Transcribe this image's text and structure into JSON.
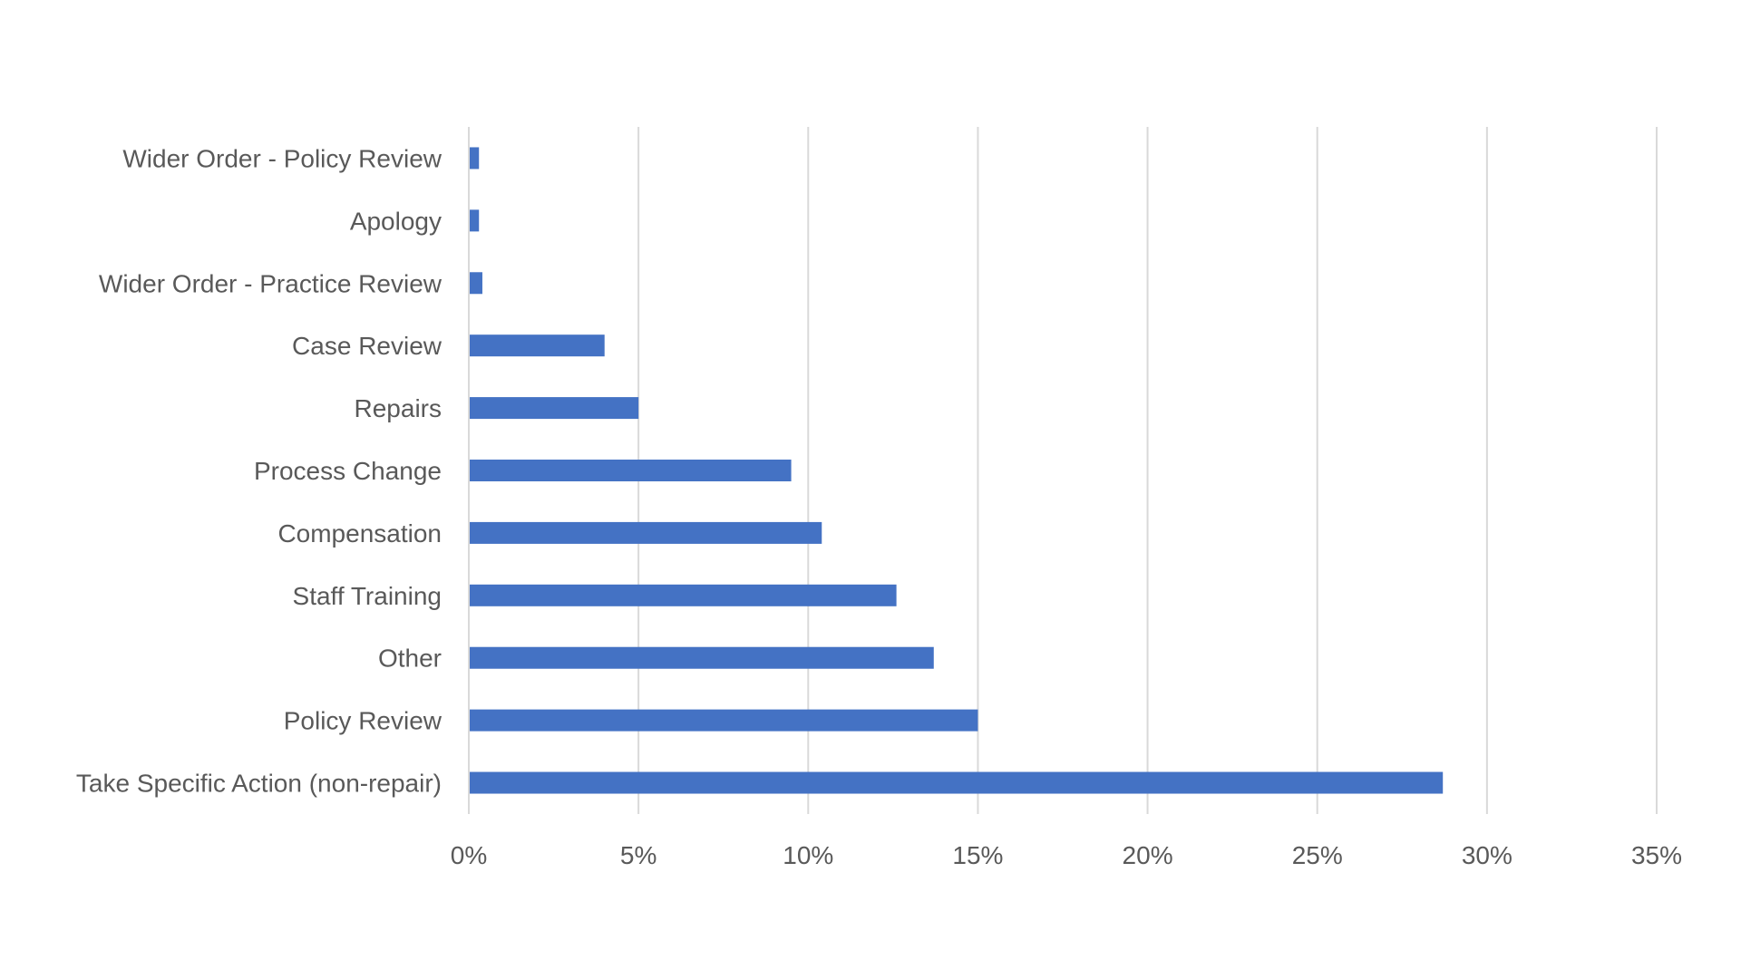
{
  "chart_data": {
    "type": "bar",
    "orientation": "horizontal",
    "title": "",
    "xlabel": "",
    "ylabel": "",
    "categories": [
      "Take Specific Action (non-repair)",
      "Policy Review",
      "Other",
      "Staff Training",
      "Compensation",
      "Process Change",
      "Repairs",
      "Case Review",
      "Wider Order - Practice Review",
      "Apology",
      "Wider Order - Policy Review"
    ],
    "values": [
      28.7,
      15.0,
      13.7,
      12.6,
      10.4,
      9.5,
      5.0,
      4.0,
      0.4,
      0.3,
      0.3
    ],
    "xlim": [
      0,
      35
    ],
    "xticks": [
      0,
      5,
      10,
      15,
      20,
      25,
      30,
      35
    ],
    "xtick_labels": [
      "0%",
      "5%",
      "10%",
      "15%",
      "20%",
      "25%",
      "30%",
      "35%"
    ],
    "grid": true,
    "legend": "none",
    "bar_color": "#4472C4"
  }
}
